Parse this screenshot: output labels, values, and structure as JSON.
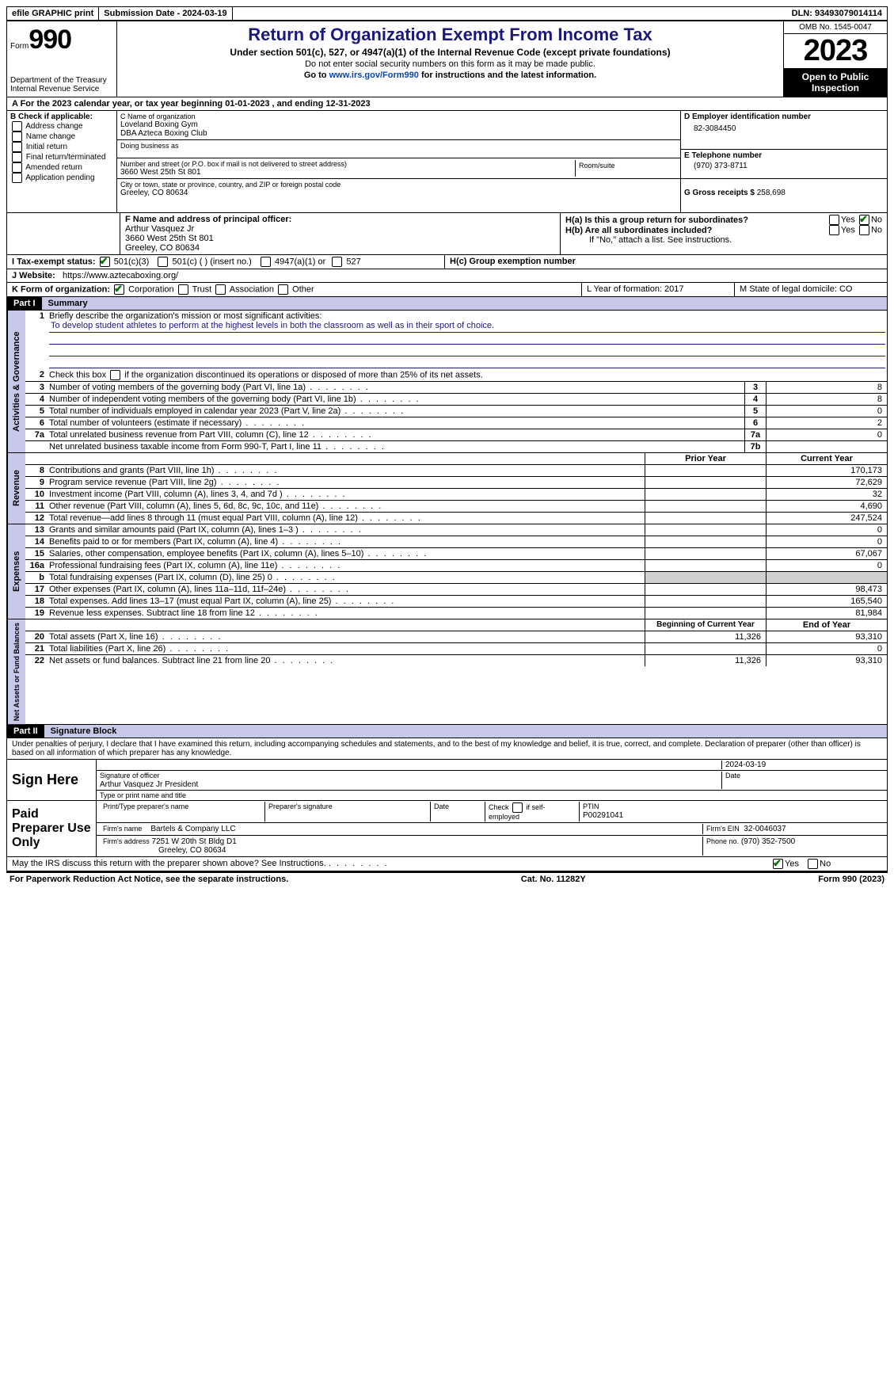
{
  "topbar": {
    "efile": "efile GRAPHIC print",
    "submission": "Submission Date - 2024-03-19",
    "dln": "DLN: 93493079014114"
  },
  "header": {
    "form_label": "Form",
    "form_num": "990",
    "dept": "Department of the Treasury",
    "irs": "Internal Revenue Service",
    "title": "Return of Organization Exempt From Income Tax",
    "subtitle": "Under section 501(c), 527, or 4947(a)(1) of the Internal Revenue Code (except private foundations)",
    "note1": "Do not enter social security numbers on this form as it may be made public.",
    "note2_pre": "Go to ",
    "note2_link": "www.irs.gov/Form990",
    "note2_post": " for instructions and the latest information.",
    "omb": "OMB No. 1545-0047",
    "year": "2023",
    "open": "Open to Public Inspection"
  },
  "row_a": "A For the 2023 calendar year, or tax year beginning 01-01-2023    , and ending 12-31-2023",
  "box_b": {
    "label": "B Check if applicable:",
    "opts": [
      "Address change",
      "Name change",
      "Initial return",
      "Final return/terminated",
      "Amended return",
      "Application pending"
    ]
  },
  "box_c": {
    "name_label": "C Name of organization",
    "name1": "Loveland Boxing Gym",
    "name2": "DBA Azteca Boxing Club",
    "dba_label": "Doing business as",
    "addr_label": "Number and street (or P.O. box if mail is not delivered to street address)",
    "addr": "3660 West 25th St 801",
    "room_label": "Room/suite",
    "city_label": "City or town, state or province, country, and ZIP or foreign postal code",
    "city": "Greeley, CO  80634"
  },
  "box_d": {
    "ein_label": "D Employer identification number",
    "ein": "82-3084450",
    "tel_label": "E Telephone number",
    "tel": "(970) 373-8711",
    "gross_label": "G Gross receipts $",
    "gross": "258,698"
  },
  "box_f": {
    "label": "F  Name and address of principal officer:",
    "name": "Arthur Vasquez Jr",
    "addr1": "3660 West 25th St 801",
    "addr2": "Greeley, CO  80634"
  },
  "box_h": {
    "ha": "H(a)  Is this a group return for subordinates?",
    "hb": "H(b)  Are all subordinates included?",
    "hb_note": "If \"No,\" attach a list. See instructions.",
    "hc": "H(c)  Group exemption number"
  },
  "tax_exempt": {
    "label": "I   Tax-exempt status:",
    "o1": "501(c)(3)",
    "o2": "501(c) (  ) (insert no.)",
    "o3": "4947(a)(1) or",
    "o4": "527"
  },
  "website": {
    "label": "J   Website:",
    "url": "https://www.aztecaboxing.org/"
  },
  "box_k": {
    "label": "K Form of organization:",
    "o1": "Corporation",
    "o2": "Trust",
    "o3": "Association",
    "o4": "Other"
  },
  "box_l": "L Year of formation: 2017",
  "box_m": "M State of legal domicile: CO",
  "part1": {
    "header": "Part I",
    "title": "Summary"
  },
  "mission": {
    "label": "Briefly describe the organization's mission or most significant activities:",
    "text": "To develop student athletes to perform at the highest levels in both the classroom as well as in their sport of choice."
  },
  "line2": "Check this box        if the organization discontinued its operations or disposed of more than 25% of its net assets.",
  "gov_lines": [
    {
      "n": "3",
      "d": "Number of voting members of the governing body (Part VI, line 1a)",
      "b": "3",
      "v": "8"
    },
    {
      "n": "4",
      "d": "Number of independent voting members of the governing body (Part VI, line 1b)",
      "b": "4",
      "v": "8"
    },
    {
      "n": "5",
      "d": "Total number of individuals employed in calendar year 2023 (Part V, line 2a)",
      "b": "5",
      "v": "0"
    },
    {
      "n": "6",
      "d": "Total number of volunteers (estimate if necessary)",
      "b": "6",
      "v": "2"
    },
    {
      "n": "7a",
      "d": "Total unrelated business revenue from Part VIII, column (C), line 12",
      "b": "7a",
      "v": "0"
    },
    {
      "n": "",
      "d": "Net unrelated business taxable income from Form 990-T, Part I, line 11",
      "b": "7b",
      "v": ""
    }
  ],
  "rev_header": {
    "prior": "Prior Year",
    "current": "Current Year"
  },
  "rev_lines": [
    {
      "n": "8",
      "d": "Contributions and grants (Part VIII, line 1h)",
      "p": "",
      "c": "170,173"
    },
    {
      "n": "9",
      "d": "Program service revenue (Part VIII, line 2g)",
      "p": "",
      "c": "72,629"
    },
    {
      "n": "10",
      "d": "Investment income (Part VIII, column (A), lines 3, 4, and 7d )",
      "p": "",
      "c": "32"
    },
    {
      "n": "11",
      "d": "Other revenue (Part VIII, column (A), lines 5, 6d, 8c, 9c, 10c, and 11e)",
      "p": "",
      "c": "4,690"
    },
    {
      "n": "12",
      "d": "Total revenue—add lines 8 through 11 (must equal Part VIII, column (A), line 12)",
      "p": "",
      "c": "247,524"
    }
  ],
  "exp_lines": [
    {
      "n": "13",
      "d": "Grants and similar amounts paid (Part IX, column (A), lines 1–3 )",
      "p": "",
      "c": "0"
    },
    {
      "n": "14",
      "d": "Benefits paid to or for members (Part IX, column (A), line 4)",
      "p": "",
      "c": "0"
    },
    {
      "n": "15",
      "d": "Salaries, other compensation, employee benefits (Part IX, column (A), lines 5–10)",
      "p": "",
      "c": "67,067"
    },
    {
      "n": "16a",
      "d": "Professional fundraising fees (Part IX, column (A), line 11e)",
      "p": "",
      "c": "0"
    },
    {
      "n": "b",
      "d": "Total fundraising expenses (Part IX, column (D), line 25) 0",
      "p": "grey",
      "c": "grey"
    },
    {
      "n": "17",
      "d": "Other expenses (Part IX, column (A), lines 11a–11d, 11f–24e)",
      "p": "",
      "c": "98,473"
    },
    {
      "n": "18",
      "d": "Total expenses. Add lines 13–17 (must equal Part IX, column (A), line 25)",
      "p": "",
      "c": "165,540"
    },
    {
      "n": "19",
      "d": "Revenue less expenses. Subtract line 18 from line 12",
      "p": "",
      "c": "81,984"
    }
  ],
  "net_header": {
    "beg": "Beginning of Current Year",
    "end": "End of Year"
  },
  "net_lines": [
    {
      "n": "20",
      "d": "Total assets (Part X, line 16)",
      "p": "11,326",
      "c": "93,310"
    },
    {
      "n": "21",
      "d": "Total liabilities (Part X, line 26)",
      "p": "",
      "c": "0"
    },
    {
      "n": "22",
      "d": "Net assets or fund balances. Subtract line 21 from line 20",
      "p": "11,326",
      "c": "93,310"
    }
  ],
  "part2": {
    "header": "Part II",
    "title": "Signature Block"
  },
  "perjury": "Under penalties of perjury, I declare that I have examined this return, including accompanying schedules and statements, and to the best of my knowledge and belief, it is true, correct, and complete. Declaration of preparer (other than officer) is based on all information of which preparer has any knowledge.",
  "sign": {
    "here": "Sign Here",
    "date": "2024-03-19",
    "sig_label": "Signature of officer",
    "officer": "Arthur Vasquez Jr  President",
    "type_label": "Type or print name and title",
    "date_label": "Date"
  },
  "preparer": {
    "label": "Paid Preparer Use Only",
    "h1": "Print/Type preparer's name",
    "h2": "Preparer's signature",
    "h3": "Date",
    "h4_pre": "Check",
    "h4_post": "if self-employed",
    "h5": "PTIN",
    "ptin": "P00291041",
    "firm_label": "Firm's name",
    "firm": "Bartels & Company LLC",
    "ein_label": "Firm's EIN",
    "ein": "32-0046037",
    "addr_label": "Firm's address",
    "addr1": "7251 W 20th St Bldg D1",
    "addr2": "Greeley, CO  80634",
    "phone_label": "Phone no.",
    "phone": "(970) 352-7500"
  },
  "discuss": "May the IRS discuss this return with the preparer shown above? See Instructions.",
  "footer": {
    "left": "For Paperwork Reduction Act Notice, see the separate instructions.",
    "mid": "Cat. No. 11282Y",
    "right_pre": "Form ",
    "right_b": "990",
    "right_post": " (2023)"
  }
}
